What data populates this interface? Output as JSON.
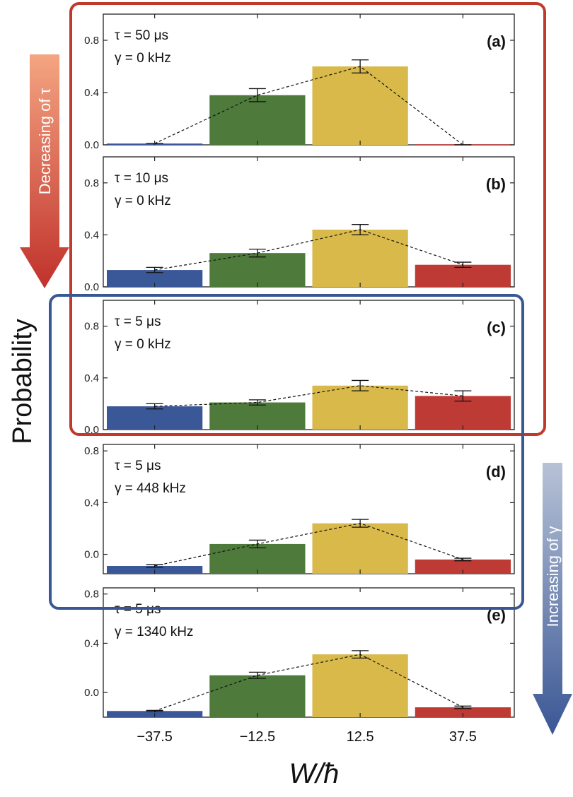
{
  "figure": {
    "ylabel": "Probability",
    "xlabel": "W/ħ",
    "arrow_left_label": "Decreasing of τ",
    "arrow_right_label": "Increasing of γ",
    "colors": {
      "red_frame": "#c0392b",
      "blue_frame": "#3a5795",
      "arrow_red_top": "#f4a582",
      "arrow_red_bottom": "#c0312b",
      "arrow_blue_top": "#b7c2d6",
      "arrow_blue_bottom": "#3a5795"
    }
  },
  "chart_data": [
    {
      "type": "bar",
      "panel_label": "(a)",
      "annotation_tau": "τ = 50 μs",
      "annotation_gamma": "γ = 0 kHz",
      "categories": [
        "−37.5",
        "−12.5",
        "12.5",
        "37.5"
      ],
      "values": [
        0.01,
        0.38,
        0.6,
        0.0
      ],
      "error": [
        0.0,
        0.05,
        0.05,
        0.0
      ],
      "colors": [
        "#3a5898",
        "#4e7a3c",
        "#d8b94a",
        "#be3a34"
      ],
      "ylim": [
        0,
        1.0
      ],
      "yticks": [
        0.0,
        0.4,
        0.8
      ],
      "ytick_labels": [
        "0.0",
        "0.4",
        "0.8"
      ],
      "dashed_line": true
    },
    {
      "type": "bar",
      "panel_label": "(b)",
      "annotation_tau": "τ = 10 μs",
      "annotation_gamma": "γ = 0 kHz",
      "categories": [
        "−37.5",
        "−12.5",
        "12.5",
        "37.5"
      ],
      "values": [
        0.13,
        0.26,
        0.44,
        0.17
      ],
      "error": [
        0.02,
        0.03,
        0.04,
        0.02
      ],
      "colors": [
        "#3a5898",
        "#4e7a3c",
        "#d8b94a",
        "#be3a34"
      ],
      "ylim": [
        0,
        1.0
      ],
      "yticks": [
        0.0,
        0.4,
        0.8
      ],
      "ytick_labels": [
        "0.0",
        "0.4",
        "0.8"
      ],
      "dashed_line": true
    },
    {
      "type": "bar",
      "panel_label": "(c)",
      "annotation_tau": "τ = 5 μs",
      "annotation_gamma": "γ = 0 kHz",
      "categories": [
        "−37.5",
        "−12.5",
        "12.5",
        "37.5"
      ],
      "values": [
        0.18,
        0.21,
        0.34,
        0.26
      ],
      "error": [
        0.02,
        0.02,
        0.04,
        0.04
      ],
      "colors": [
        "#3a5898",
        "#4e7a3c",
        "#d8b94a",
        "#be3a34"
      ],
      "ylim": [
        0,
        1.0
      ],
      "yticks": [
        0.0,
        0.4,
        0.8
      ],
      "ytick_labels": [
        "0.0",
        "0.4",
        "0.8"
      ],
      "dashed_line": true
    },
    {
      "type": "bar",
      "panel_label": "(d)",
      "annotation_tau": "τ = 5 μs",
      "annotation_gamma": "γ = 448 kHz",
      "categories": [
        "−37.5",
        "−12.5",
        "12.5",
        "37.5"
      ],
      "values": [
        -0.09,
        0.08,
        0.24,
        -0.04
      ],
      "error": [
        0.01,
        0.03,
        0.03,
        0.01
      ],
      "colors": [
        "#3a5898",
        "#4e7a3c",
        "#d8b94a",
        "#be3a34"
      ],
      "ylim": [
        -0.15,
        0.85
      ],
      "yticks": [
        0.0,
        0.4,
        0.8
      ],
      "ytick_labels": [
        "0.0",
        "0.4",
        "0.8"
      ],
      "dashed_line": true
    },
    {
      "type": "bar",
      "panel_label": "(e)",
      "annotation_tau": "τ = 5 μs",
      "annotation_gamma": "γ = 1340 kHz",
      "categories": [
        "−37.5",
        "−12.5",
        "12.5",
        "37.5"
      ],
      "values": [
        -0.15,
        0.14,
        0.31,
        -0.12
      ],
      "error": [
        0.005,
        0.025,
        0.03,
        0.01
      ],
      "colors": [
        "#3a5898",
        "#4e7a3c",
        "#d8b94a",
        "#be3a34"
      ],
      "ylim": [
        -0.2,
        0.85
      ],
      "yticks": [
        0.0,
        0.4,
        0.8
      ],
      "ytick_labels": [
        "0.0",
        "0.4",
        "0.8"
      ],
      "dashed_line": true
    }
  ]
}
